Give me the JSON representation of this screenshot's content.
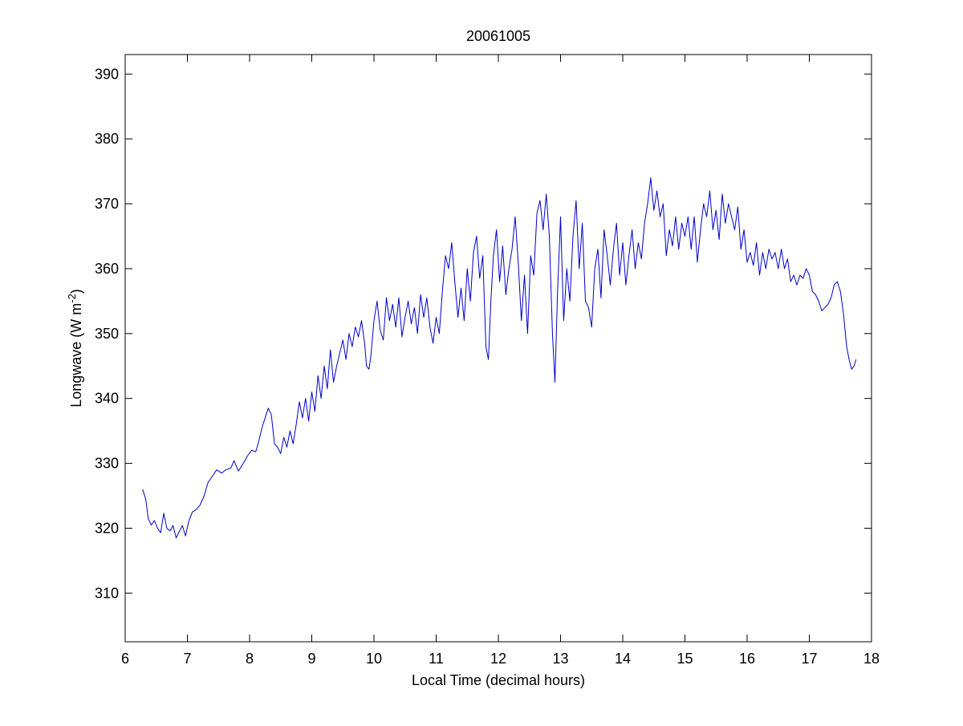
{
  "chart_data": {
    "type": "line",
    "title": "20061005",
    "xlabel": "Local Time (decimal hours)",
    "ylabel": {
      "prefix": "Longwave (W m",
      "superscript": "-2",
      "suffix": ")"
    },
    "xlim": [
      6,
      18
    ],
    "ylim": [
      302.5,
      393
    ],
    "xticks": [
      6,
      7,
      8,
      9,
      10,
      11,
      12,
      13,
      14,
      15,
      16,
      17,
      18
    ],
    "yticks": [
      310,
      320,
      330,
      340,
      350,
      360,
      370,
      380,
      390
    ],
    "grid": false,
    "series": [
      {
        "color": "#0000cc",
        "points": [
          [
            6.28,
            326.0
          ],
          [
            6.33,
            324.5
          ],
          [
            6.37,
            321.5
          ],
          [
            6.42,
            320.5
          ],
          [
            6.47,
            321.2
          ],
          [
            6.52,
            320.0
          ],
          [
            6.57,
            319.3
          ],
          [
            6.62,
            322.3
          ],
          [
            6.67,
            320.0
          ],
          [
            6.72,
            319.6
          ],
          [
            6.77,
            320.4
          ],
          [
            6.82,
            318.5
          ],
          [
            6.87,
            319.5
          ],
          [
            6.92,
            320.4
          ],
          [
            6.97,
            318.8
          ],
          [
            7.02,
            321.0
          ],
          [
            7.08,
            322.5
          ],
          [
            7.13,
            322.8
          ],
          [
            7.2,
            323.5
          ],
          [
            7.27,
            325.0
          ],
          [
            7.33,
            327.0
          ],
          [
            7.4,
            328.0
          ],
          [
            7.47,
            329.0
          ],
          [
            7.55,
            328.5
          ],
          [
            7.62,
            329.0
          ],
          [
            7.7,
            329.3
          ],
          [
            7.75,
            330.4
          ],
          [
            7.82,
            328.8
          ],
          [
            7.9,
            330.0
          ],
          [
            7.97,
            331.2
          ],
          [
            8.03,
            332.0
          ],
          [
            8.1,
            331.8
          ],
          [
            8.15,
            333.5
          ],
          [
            8.2,
            335.5
          ],
          [
            8.25,
            337.0
          ],
          [
            8.3,
            338.5
          ],
          [
            8.35,
            337.5
          ],
          [
            8.4,
            333.0
          ],
          [
            8.45,
            332.5
          ],
          [
            8.5,
            331.5
          ],
          [
            8.55,
            334.0
          ],
          [
            8.6,
            332.5
          ],
          [
            8.65,
            335.0
          ],
          [
            8.7,
            333.0
          ],
          [
            8.75,
            336.0
          ],
          [
            8.8,
            339.5
          ],
          [
            8.85,
            337.0
          ],
          [
            8.9,
            340.0
          ],
          [
            8.95,
            336.5
          ],
          [
            9.0,
            341.0
          ],
          [
            9.05,
            338.0
          ],
          [
            9.1,
            343.5
          ],
          [
            9.15,
            340.0
          ],
          [
            9.2,
            345.0
          ],
          [
            9.25,
            341.5
          ],
          [
            9.3,
            347.5
          ],
          [
            9.35,
            342.5
          ],
          [
            9.4,
            345.0
          ],
          [
            9.45,
            347.0
          ],
          [
            9.5,
            349.0
          ],
          [
            9.55,
            346.0
          ],
          [
            9.6,
            350.0
          ],
          [
            9.65,
            348.0
          ],
          [
            9.7,
            351.0
          ],
          [
            9.75,
            349.5
          ],
          [
            9.8,
            352.0
          ],
          [
            9.85,
            348.5
          ],
          [
            9.88,
            345.0
          ],
          [
            9.92,
            344.5
          ],
          [
            9.95,
            346.5
          ],
          [
            10.0,
            352.0
          ],
          [
            10.05,
            355.0
          ],
          [
            10.1,
            350.5
          ],
          [
            10.15,
            349.0
          ],
          [
            10.2,
            355.5
          ],
          [
            10.25,
            352.0
          ],
          [
            10.3,
            354.5
          ],
          [
            10.35,
            351.0
          ],
          [
            10.4,
            355.5
          ],
          [
            10.45,
            349.5
          ],
          [
            10.5,
            352.5
          ],
          [
            10.55,
            355.0
          ],
          [
            10.6,
            351.5
          ],
          [
            10.65,
            354.0
          ],
          [
            10.7,
            350.0
          ],
          [
            10.75,
            356.0
          ],
          [
            10.8,
            352.5
          ],
          [
            10.85,
            355.5
          ],
          [
            10.9,
            351.0
          ],
          [
            10.95,
            348.5
          ],
          [
            11.0,
            352.5
          ],
          [
            11.05,
            350.0
          ],
          [
            11.1,
            356.5
          ],
          [
            11.15,
            362.0
          ],
          [
            11.2,
            360.0
          ],
          [
            11.25,
            364.0
          ],
          [
            11.3,
            358.0
          ],
          [
            11.35,
            352.5
          ],
          [
            11.4,
            357.0
          ],
          [
            11.45,
            352.0
          ],
          [
            11.5,
            360.0
          ],
          [
            11.55,
            355.0
          ],
          [
            11.6,
            362.5
          ],
          [
            11.65,
            365.0
          ],
          [
            11.7,
            358.5
          ],
          [
            11.75,
            362.0
          ],
          [
            11.8,
            348.0
          ],
          [
            11.84,
            346.0
          ],
          [
            11.88,
            355.0
          ],
          [
            11.92,
            362.0
          ],
          [
            11.97,
            366.0
          ],
          [
            12.02,
            358.0
          ],
          [
            12.07,
            363.5
          ],
          [
            12.12,
            356.0
          ],
          [
            12.17,
            360.0
          ],
          [
            12.22,
            363.0
          ],
          [
            12.27,
            368.0
          ],
          [
            12.32,
            361.0
          ],
          [
            12.37,
            352.0
          ],
          [
            12.42,
            359.0
          ],
          [
            12.47,
            350.0
          ],
          [
            12.52,
            362.0
          ],
          [
            12.57,
            359.0
          ],
          [
            12.62,
            368.5
          ],
          [
            12.67,
            370.5
          ],
          [
            12.72,
            366.0
          ],
          [
            12.77,
            371.5
          ],
          [
            12.82,
            365.0
          ],
          [
            12.87,
            350.0
          ],
          [
            12.91,
            342.5
          ],
          [
            12.95,
            356.0
          ],
          [
            13.0,
            368.0
          ],
          [
            13.05,
            352.0
          ],
          [
            13.1,
            360.0
          ],
          [
            13.15,
            355.0
          ],
          [
            13.2,
            365.0
          ],
          [
            13.25,
            370.5
          ],
          [
            13.3,
            360.0
          ],
          [
            13.35,
            367.0
          ],
          [
            13.4,
            355.0
          ],
          [
            13.45,
            354.0
          ],
          [
            13.5,
            351.0
          ],
          [
            13.55,
            360.0
          ],
          [
            13.6,
            363.0
          ],
          [
            13.65,
            355.5
          ],
          [
            13.7,
            366.0
          ],
          [
            13.75,
            362.0
          ],
          [
            13.8,
            357.5
          ],
          [
            13.85,
            363.0
          ],
          [
            13.9,
            367.0
          ],
          [
            13.95,
            359.0
          ],
          [
            14.0,
            364.0
          ],
          [
            14.05,
            357.5
          ],
          [
            14.1,
            362.0
          ],
          [
            14.15,
            366.0
          ],
          [
            14.2,
            360.0
          ],
          [
            14.25,
            364.0
          ],
          [
            14.3,
            361.5
          ],
          [
            14.35,
            367.0
          ],
          [
            14.4,
            370.0
          ],
          [
            14.45,
            374.0
          ],
          [
            14.5,
            369.0
          ],
          [
            14.55,
            372.0
          ],
          [
            14.6,
            368.0
          ],
          [
            14.65,
            370.0
          ],
          [
            14.7,
            362.0
          ],
          [
            14.75,
            366.0
          ],
          [
            14.8,
            363.5
          ],
          [
            14.85,
            368.0
          ],
          [
            14.9,
            363.0
          ],
          [
            14.95,
            367.0
          ],
          [
            15.0,
            365.0
          ],
          [
            15.05,
            368.0
          ],
          [
            15.1,
            363.0
          ],
          [
            15.15,
            368.0
          ],
          [
            15.2,
            361.0
          ],
          [
            15.25,
            366.0
          ],
          [
            15.3,
            370.0
          ],
          [
            15.35,
            368.0
          ],
          [
            15.4,
            372.0
          ],
          [
            15.45,
            366.0
          ],
          [
            15.5,
            369.0
          ],
          [
            15.55,
            364.5
          ],
          [
            15.6,
            371.5
          ],
          [
            15.65,
            367.0
          ],
          [
            15.7,
            370.0
          ],
          [
            15.75,
            368.0
          ],
          [
            15.8,
            366.0
          ],
          [
            15.85,
            369.5
          ],
          [
            15.9,
            363.0
          ],
          [
            15.95,
            366.0
          ],
          [
            16.0,
            361.0
          ],
          [
            16.05,
            362.5
          ],
          [
            16.1,
            360.5
          ],
          [
            16.15,
            364.0
          ],
          [
            16.2,
            359.0
          ],
          [
            16.25,
            362.5
          ],
          [
            16.3,
            360.0
          ],
          [
            16.35,
            363.0
          ],
          [
            16.4,
            361.5
          ],
          [
            16.45,
            362.5
          ],
          [
            16.5,
            360.0
          ],
          [
            16.55,
            363.0
          ],
          [
            16.6,
            360.0
          ],
          [
            16.65,
            361.5
          ],
          [
            16.7,
            358.0
          ],
          [
            16.75,
            359.0
          ],
          [
            16.8,
            357.5
          ],
          [
            16.85,
            359.0
          ],
          [
            16.9,
            358.5
          ],
          [
            16.95,
            360.0
          ],
          [
            17.0,
            359.0
          ],
          [
            17.05,
            356.5
          ],
          [
            17.1,
            356.0
          ],
          [
            17.15,
            355.0
          ],
          [
            17.2,
            353.5
          ],
          [
            17.25,
            354.0
          ],
          [
            17.3,
            354.5
          ],
          [
            17.35,
            355.5
          ],
          [
            17.4,
            357.5
          ],
          [
            17.45,
            358.0
          ],
          [
            17.5,
            356.5
          ],
          [
            17.55,
            353.0
          ],
          [
            17.6,
            348.0
          ],
          [
            17.64,
            346.0
          ],
          [
            17.68,
            344.5
          ],
          [
            17.72,
            345.0
          ],
          [
            17.75,
            346.0
          ]
        ]
      }
    ]
  }
}
